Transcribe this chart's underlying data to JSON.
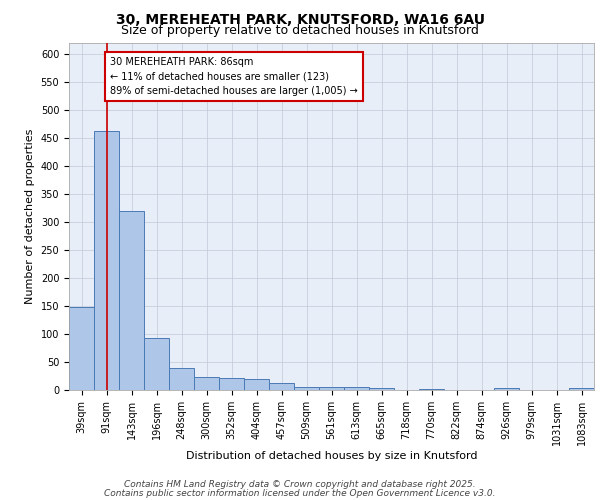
{
  "title_line1": "30, MEREHEATH PARK, KNUTSFORD, WA16 6AU",
  "title_line2": "Size of property relative to detached houses in Knutsford",
  "xlabel": "Distribution of detached houses by size in Knutsford",
  "ylabel": "Number of detached properties",
  "categories": [
    "39sqm",
    "91sqm",
    "143sqm",
    "196sqm",
    "248sqm",
    "300sqm",
    "352sqm",
    "404sqm",
    "457sqm",
    "509sqm",
    "561sqm",
    "613sqm",
    "665sqm",
    "718sqm",
    "770sqm",
    "822sqm",
    "874sqm",
    "926sqm",
    "979sqm",
    "1031sqm",
    "1083sqm"
  ],
  "values": [
    148,
    462,
    320,
    93,
    40,
    23,
    21,
    20,
    12,
    6,
    5,
    5,
    3,
    0,
    1,
    0,
    0,
    3,
    0,
    0,
    4
  ],
  "bar_color": "#aec6e8",
  "bar_edge_color": "#4a7ab5",
  "background_color": "#e8eef8",
  "grid_color": "#c0c8d8",
  "vline_x": 1,
  "vline_color": "#cc0000",
  "annotation_text": "30 MEREHEATH PARK: 86sqm\n← 11% of detached houses are smaller (123)\n89% of semi-detached houses are larger (1,005) →",
  "annotation_box_color": "#ffffff",
  "annotation_box_edge": "#cc0000",
  "ylim": [
    0,
    620
  ],
  "yticks": [
    0,
    50,
    100,
    150,
    200,
    250,
    300,
    350,
    400,
    450,
    500,
    550,
    600
  ],
  "footer_line1": "Contains HM Land Registry data © Crown copyright and database right 2025.",
  "footer_line2": "Contains public sector information licensed under the Open Government Licence v3.0.",
  "title_fontsize": 10,
  "subtitle_fontsize": 9,
  "axis_label_fontsize": 8,
  "tick_fontsize": 7,
  "annotation_fontsize": 7,
  "footer_fontsize": 6.5
}
